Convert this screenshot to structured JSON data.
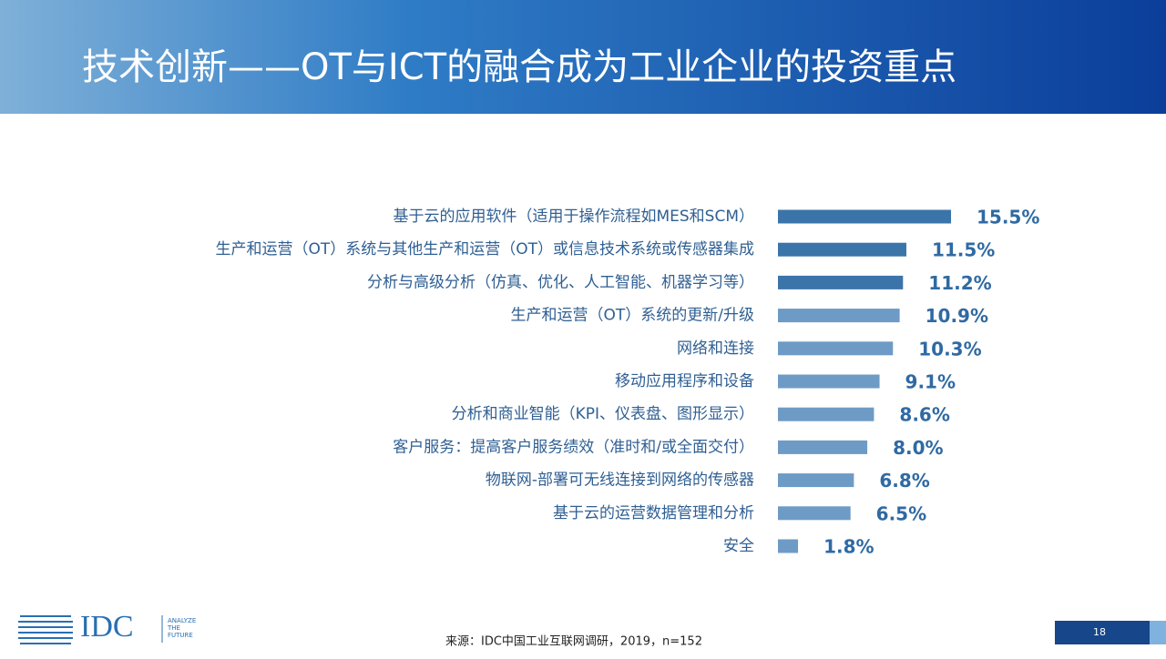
{
  "chart_data": {
    "type": "hbar",
    "title": "技术创新——OT与ICT的融合成为工业企业的投资重点",
    "categories": [
      "基于云的应用软件（适用于操作流程如MES和SCM）",
      "生产和运营（OT）系统与其他生产和运营（OT）或信息技术系统或传感器集成",
      "分析与高级分析（仿真、优化、人工智能、机器学习等）",
      "生产和运营（OT）系统的更新/升级",
      "网络和连接",
      "移动应用程序和设备",
      "分析和商业智能（KPI、仪表盘、图形显示）",
      "客户服务：提高客户服务绩效（准时和/或全面交付）",
      "物联网-部署可无线连接到网络的传感器",
      "基于云的运营数据管理和分析",
      "安全"
    ],
    "values": [
      15.5,
      11.5,
      11.2,
      10.9,
      10.3,
      9.1,
      8.6,
      8.0,
      6.8,
      6.5,
      1.8
    ],
    "value_labels": [
      "15.5%",
      "11.5%",
      "11.2%",
      "10.9%",
      "10.3%",
      "9.1%",
      "8.6%",
      "8.0%",
      "6.8%",
      "6.5%",
      "1.8%"
    ],
    "colors": [
      "#3b74a9",
      "#3b74a9",
      "#3b74a9",
      "#6d9bc6",
      "#6d9bc6",
      "#6d9bc6",
      "#6d9bc6",
      "#6d9bc6",
      "#6d9bc6",
      "#6d9bc6",
      "#6d9bc6"
    ]
  },
  "footer": {
    "source": "来源：IDC中国工业互联网调研，2019，n=152",
    "page_number": "18",
    "logo": "IDC",
    "tagline": [
      "ANALYZE",
      "THE",
      "FUTURE"
    ]
  }
}
